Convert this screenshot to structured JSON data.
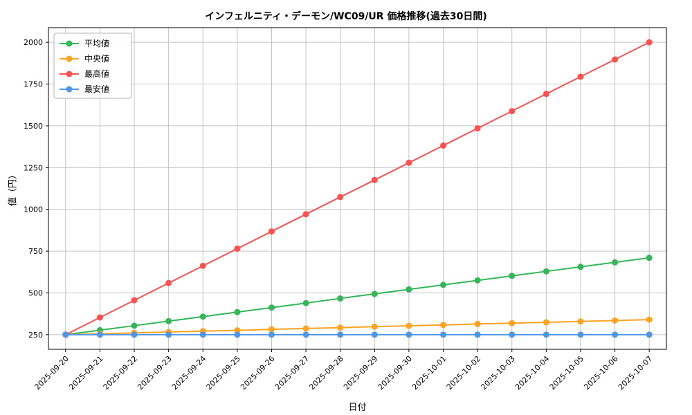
{
  "chart_data": {
    "type": "line",
    "title": "インフェルニティ・デーモン/WC09/UR 価格推移(過去30日間)",
    "xlabel": "日付",
    "ylabel": "値（円）",
    "x": [
      "2025-09-20",
      "2025-09-21",
      "2025-09-22",
      "2025-09-23",
      "2025-09-24",
      "2025-09-25",
      "2025-09-26",
      "2025-09-27",
      "2025-09-28",
      "2025-09-29",
      "2025-09-30",
      "2025-10-01",
      "2025-10-02",
      "2025-10-03",
      "2025-10-04",
      "2025-10-05",
      "2025-10-06",
      "2025-10-07"
    ],
    "series": [
      {
        "name": "平均値",
        "color": "#33b657",
        "values": [
          250,
          277,
          304,
          331,
          358,
          385,
          412,
          439,
          467,
          494,
          521,
          548,
          575,
          602,
          629,
          656,
          683,
          710
        ]
      },
      {
        "name": "中央値",
        "color": "#ffa21f",
        "values": [
          250,
          255,
          261,
          266,
          271,
          276,
          282,
          287,
          292,
          298,
          303,
          308,
          314,
          319,
          324,
          329,
          335,
          340
        ]
      },
      {
        "name": "最高値",
        "color": "#ff5050",
        "values": [
          250,
          353,
          456,
          559,
          662,
          765,
          868,
          971,
          1074,
          1176,
          1279,
          1382,
          1485,
          1588,
          1691,
          1794,
          1897,
          2000
        ]
      },
      {
        "name": "最安値",
        "color": "#4d96ea",
        "values": [
          250,
          250,
          250,
          250,
          250,
          250,
          250,
          250,
          250,
          250,
          250,
          250,
          250,
          250,
          250,
          250,
          250,
          250
        ]
      }
    ],
    "yticks": [
      250,
      500,
      750,
      1000,
      1250,
      1500,
      1750,
      2000
    ],
    "ylim": [
      162.5,
      2087.5
    ],
    "grid": true,
    "grid_color": "#c3c3c3",
    "axis_color": "#000000",
    "legend_position": "upper left",
    "marker": "circle"
  }
}
